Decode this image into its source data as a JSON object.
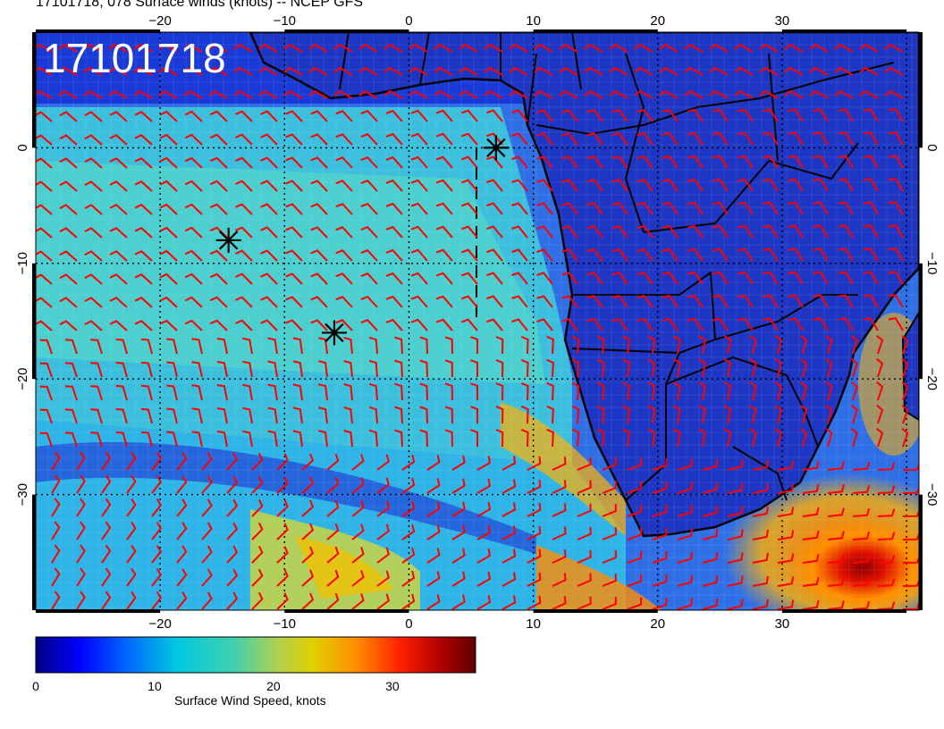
{
  "title": "17101718, 078 Surface winds (knots) -- NCEP GFS",
  "stamp": "17101718",
  "map": {
    "projection": "cylindrical",
    "lon_range": [
      -30,
      41
    ],
    "lat_range": [
      -40,
      10
    ],
    "grid_style": "dotted",
    "gridlines": "on",
    "field": "surface wind speed",
    "barb_color": "#ff0000",
    "coastline_color": "#000000",
    "lon_ticks": [
      -20,
      -10,
      0,
      10,
      20,
      30
    ],
    "lat_ticks": [
      0,
      -10,
      -20,
      -30
    ],
    "lon_tick_labels": [
      "−20",
      "−10",
      "0",
      "10",
      "20",
      "30"
    ],
    "lat_tick_labels": [
      "0",
      "−10",
      "−20",
      "−30"
    ],
    "markers": [
      {
        "symbol": "asterisk",
        "lon": 7,
        "lat": 0
      },
      {
        "symbol": "asterisk",
        "lon": -14.5,
        "lat": -8
      },
      {
        "symbol": "asterisk",
        "lon": -6,
        "lat": -16
      }
    ]
  },
  "colorbar": {
    "title": "Surface Wind Speed, knots",
    "min": 0,
    "max": 37,
    "tick_values": [
      0,
      10,
      20,
      30
    ],
    "tick_labels": [
      "0",
      "10",
      "20",
      "30"
    ],
    "colors": [
      "#00007f",
      "#0000ff",
      "#0060ff",
      "#00c8e0",
      "#40d0b0",
      "#b0d050",
      "#e0d000",
      "#ff8c00",
      "#ff2000",
      "#b00000",
      "#600000"
    ]
  }
}
